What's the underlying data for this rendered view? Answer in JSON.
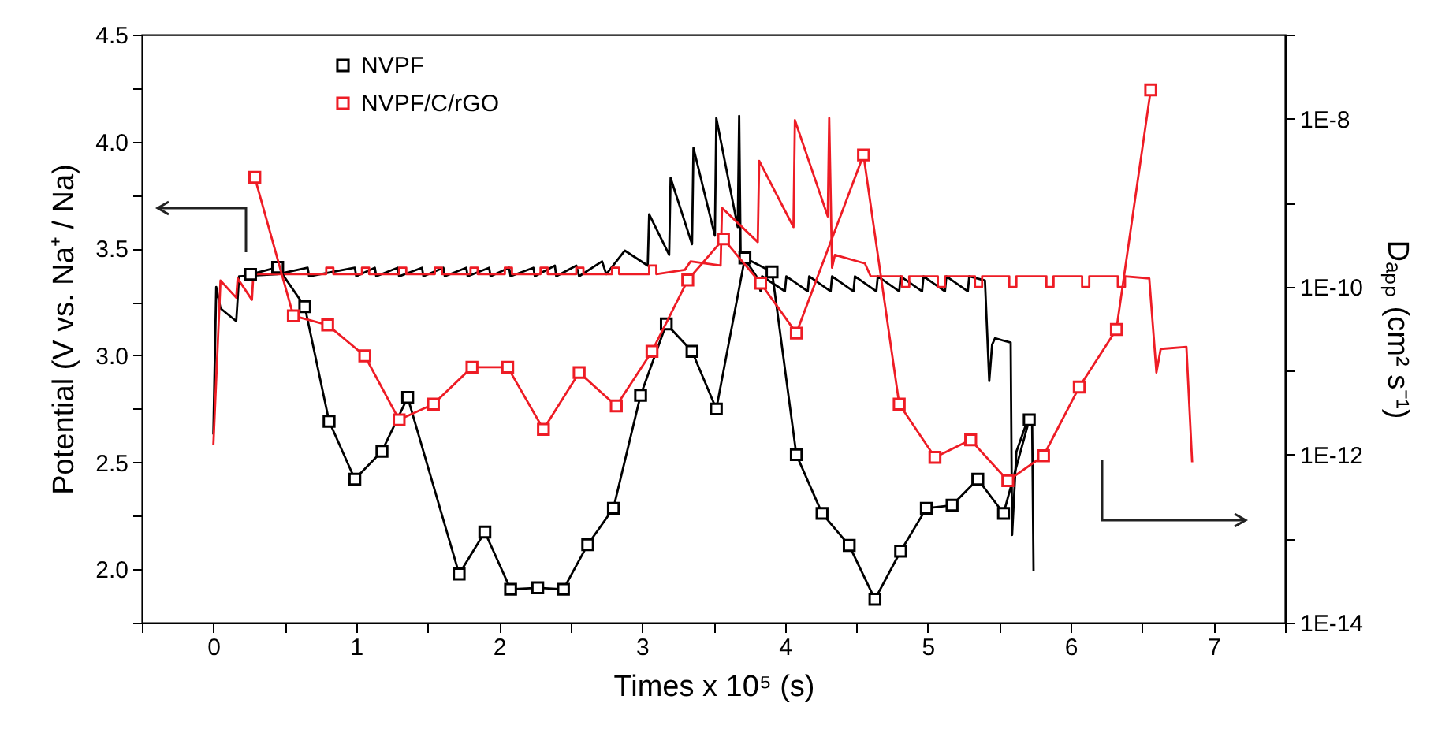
{
  "chart_data": {
    "type": "line",
    "xlabel": "Times x 10⁵ (s)",
    "ylabel": "Potential (V vs. Na⁺ / Na)",
    "y2label": "Dₐₚₚ (cm² s⁻¹)",
    "xlim": [
      -0.5,
      7.5
    ],
    "xticks": [
      {
        "value": -0.5,
        "label": null
      },
      0,
      {
        "value": 0.5,
        "label": null
      },
      1,
      {
        "value": 1.5,
        "label": null
      },
      2,
      {
        "value": 2.5,
        "label": null
      },
      3,
      {
        "value": 3.5,
        "label": null
      },
      4,
      {
        "value": 4.5,
        "label": null
      },
      5,
      {
        "value": 5.5,
        "label": null
      },
      6,
      {
        "value": 6.5,
        "label": null
      },
      7,
      {
        "value": 7.5,
        "label": null
      }
    ],
    "ylim": [
      1.75,
      4.5
    ],
    "yticks": [
      {
        "value": 1.75,
        "label": null
      },
      {
        "value": 2,
        "label": "2.0"
      },
      {
        "value": 2.25,
        "label": null
      },
      2.5,
      {
        "value": 2.75,
        "label": null
      },
      {
        "value": 3,
        "label": "3.0"
      },
      {
        "value": 3.25,
        "label": null
      },
      3.5,
      {
        "value": 3.75,
        "label": null
      },
      {
        "value": 4,
        "label": "4.0"
      },
      {
        "value": 4.25,
        "label": null
      },
      4.5
    ],
    "y2lim": [
      1e-14,
      1e-07
    ],
    "y2ticks": [
      {
        "value": 1e-14,
        "label": "1E-14"
      },
      {
        "value": 1e-13,
        "label": null
      },
      {
        "value": 1e-12,
        "label": "1E-12"
      },
      {
        "value": 1e-11,
        "label": null
      },
      {
        "value": 1e-10,
        "label": "1E-10"
      },
      {
        "value": 1e-09,
        "label": null
      },
      {
        "value": 1e-08,
        "label": "1E-8"
      },
      {
        "value": 1e-07,
        "label": null
      }
    ],
    "log": "y2",
    "legend": "top left",
    "series": [
      {
        "color": "#000000",
        "marker": "none",
        "x": [
          0,
          0.02,
          0.05,
          0.16,
          0.18,
          0.45,
          0.66,
          0.67,
          0.99,
          1.0,
          1.13,
          1.14,
          1.29,
          1.3,
          1.46,
          1.47,
          1.61,
          1.62,
          1.77,
          1.78,
          1.93,
          1.94,
          2.07,
          2.08,
          2.24,
          2.25,
          2.39,
          2.4,
          2.54,
          2.56,
          2.72,
          2.75,
          2.88,
          3.04,
          3.05,
          3.19,
          3.2,
          3.35,
          3.36,
          3.51,
          3.52,
          3.67,
          3.68,
          3.69,
          3.72,
          3.8,
          3.83,
          3.84,
          4.0,
          4.01,
          4.16,
          4.17,
          4.32,
          4.33,
          4.48,
          4.49,
          4.64,
          4.65,
          4.8,
          4.81,
          4.96,
          4.97,
          5.12,
          5.13,
          5.28,
          5.29,
          5.4,
          5.43,
          5.45,
          5.47,
          5.58,
          5.59,
          5.62,
          5.7,
          5.73,
          5.74
        ],
        "values": [
          2.63,
          3.32,
          3.22,
          3.16,
          3.37,
          3.38,
          3.41,
          3.37,
          3.41,
          3.37,
          3.41,
          3.37,
          3.41,
          3.37,
          3.41,
          3.37,
          3.41,
          3.37,
          3.41,
          3.37,
          3.41,
          3.37,
          3.41,
          3.37,
          3.41,
          3.37,
          3.42,
          3.37,
          3.42,
          3.37,
          3.44,
          3.38,
          3.49,
          3.42,
          3.66,
          3.47,
          3.83,
          3.52,
          3.97,
          3.56,
          4.11,
          3.6,
          4.12,
          3.48,
          3.45,
          3.37,
          3.3,
          3.37,
          3.3,
          3.37,
          3.3,
          3.37,
          3.3,
          3.37,
          3.3,
          3.37,
          3.3,
          3.37,
          3.3,
          3.37,
          3.3,
          3.37,
          3.3,
          3.37,
          3.3,
          3.37,
          3.35,
          2.88,
          3.05,
          3.08,
          3.06,
          2.16,
          2.55,
          2.7,
          2.7,
          1.99
        ]
      },
      {
        "color": "#ee1c25",
        "marker": "none",
        "x": [
          0,
          0.05,
          0.16,
          0.17,
          0.27,
          0.28,
          0.79,
          0.79,
          0.84,
          0.84,
          1.04,
          1.04,
          1.09,
          1.09,
          1.3,
          1.3,
          1.35,
          1.35,
          1.55,
          1.55,
          1.6,
          1.6,
          1.8,
          1.8,
          1.85,
          1.85,
          2.04,
          2.04,
          2.09,
          2.09,
          2.29,
          2.29,
          2.34,
          2.34,
          2.54,
          2.54,
          2.59,
          2.59,
          2.79,
          2.79,
          2.84,
          2.84,
          3.05,
          3.05,
          3.1,
          3.1,
          3.3,
          3.34,
          3.55,
          3.56,
          3.81,
          3.82,
          4.06,
          4.07,
          4.3,
          4.31,
          4.33,
          4.35,
          4.56,
          4.6,
          4.82,
          4.82,
          4.87,
          4.87,
          5.07,
          5.07,
          5.12,
          5.12,
          5.33,
          5.33,
          5.38,
          5.38,
          5.57,
          5.57,
          5.62,
          5.62,
          5.83,
          5.83,
          5.88,
          5.88,
          6.08,
          6.08,
          6.13,
          6.13,
          6.33,
          6.33,
          6.38,
          6.38,
          6.55,
          6.6,
          6.63,
          6.81,
          6.85
        ],
        "values": [
          2.58,
          3.35,
          3.27,
          3.36,
          3.26,
          3.38,
          3.38,
          3.41,
          3.41,
          3.38,
          3.38,
          3.41,
          3.41,
          3.38,
          3.38,
          3.41,
          3.41,
          3.38,
          3.38,
          3.41,
          3.41,
          3.38,
          3.38,
          3.41,
          3.41,
          3.38,
          3.38,
          3.41,
          3.41,
          3.38,
          3.38,
          3.41,
          3.41,
          3.38,
          3.38,
          3.41,
          3.41,
          3.38,
          3.38,
          3.41,
          3.41,
          3.38,
          3.38,
          3.42,
          3.42,
          3.38,
          3.4,
          3.44,
          3.42,
          3.69,
          3.53,
          3.91,
          3.6,
          4.1,
          3.65,
          4.11,
          3.41,
          3.47,
          3.43,
          3.37,
          3.37,
          3.32,
          3.32,
          3.37,
          3.37,
          3.32,
          3.32,
          3.37,
          3.37,
          3.32,
          3.32,
          3.37,
          3.37,
          3.32,
          3.32,
          3.37,
          3.37,
          3.32,
          3.32,
          3.37,
          3.37,
          3.32,
          3.32,
          3.37,
          3.37,
          3.32,
          3.32,
          3.37,
          3.36,
          2.92,
          3.03,
          3.04,
          2.5
        ]
      },
      {
        "axis": "y2",
        "name": "NVPF",
        "color": "#000000",
        "marker": "square",
        "x": [
          0.26,
          0.45,
          0.64,
          0.81,
          0.99,
          1.18,
          1.36,
          1.72,
          1.9,
          2.08,
          2.27,
          2.45,
          2.62,
          2.8,
          2.99,
          3.17,
          3.35,
          3.52,
          3.72,
          3.91,
          4.08,
          4.26,
          4.45,
          4.63,
          4.81,
          4.99,
          5.17,
          5.35,
          5.53,
          5.71
        ],
        "values": [
          1.4e-10,
          1.7e-10,
          5.8e-11,
          2.5e-12,
          5.1e-13,
          1.1e-12,
          4.8e-12,
          3.8e-14,
          1.2e-13,
          2.5e-14,
          2.6e-14,
          2.5e-14,
          8.5e-14,
          2.3e-13,
          5.1e-12,
          3.6e-11,
          1.7e-11,
          3.5e-12,
          2.2e-10,
          1.5e-10,
          1e-12,
          2e-13,
          8.3e-14,
          1.9e-14,
          7.1e-14,
          2.3e-13,
          2.5e-13,
          5.1e-13,
          2e-13,
          2.6e-12
        ]
      },
      {
        "axis": "y2",
        "name": "NVPF/C/rGO",
        "color": "#ee1c25",
        "marker": "square",
        "x": [
          0.29,
          0.56,
          0.8,
          1.06,
          1.3,
          1.54,
          1.81,
          2.06,
          2.31,
          2.56,
          2.82,
          3.07,
          3.32,
          3.57,
          3.83,
          4.08,
          4.55,
          4.8,
          5.05,
          5.3,
          5.56,
          5.81,
          6.06,
          6.32,
          6.56
        ],
        "values": [
          2e-09,
          4.5e-11,
          3.5e-11,
          1.5e-11,
          2.6e-12,
          4e-12,
          1.1e-11,
          1.1e-11,
          2e-12,
          9.5e-12,
          3.8e-12,
          1.7e-11,
          1.2e-10,
          3.7e-10,
          1.1e-10,
          2.8e-11,
          3.7e-09,
          4e-12,
          9.3e-13,
          1.5e-12,
          4.9e-13,
          9.7e-13,
          6.4e-12,
          3.1e-11,
          2.2e-08
        ]
      }
    ]
  }
}
